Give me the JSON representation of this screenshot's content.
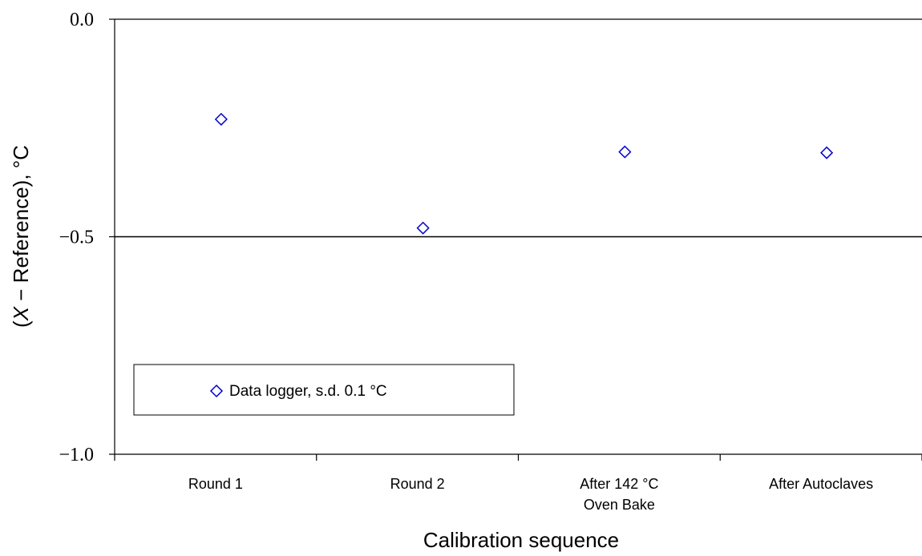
{
  "chart_data": {
    "type": "scatter",
    "categories": [
      "Round 1",
      "Round 2",
      "After 142 °C\nOven Bake",
      "After Autoclaves"
    ],
    "series": [
      {
        "name": "Data logger, s.d. 0.1 °C",
        "values": [
          -0.23,
          -0.48,
          -0.305,
          -0.307
        ],
        "marker": "diamond-open",
        "color": "#0000cc"
      }
    ],
    "xlabel": "Calibration sequence",
    "ylabel_parts": [
      "(",
      "X",
      " − Reference), °C"
    ],
    "ylim": [
      -1.0,
      0.0
    ],
    "yticks": [
      0.0,
      -0.5,
      -1.0
    ],
    "ytick_labels": [
      "0.0",
      "−0.5",
      "−1.0"
    ],
    "grid": "horizontal line at −0.5",
    "legend_position": "bottom-left"
  }
}
